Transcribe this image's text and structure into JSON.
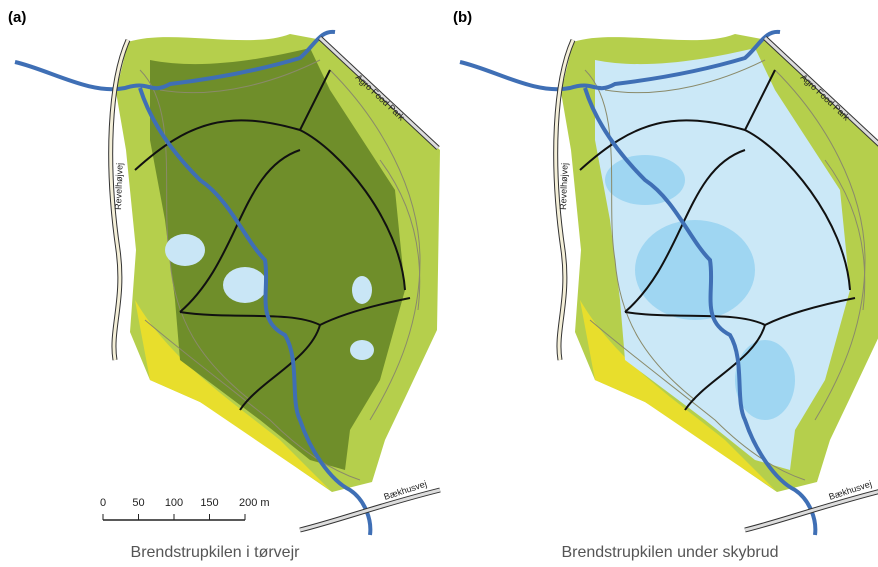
{
  "panels": [
    {
      "label": "(a)",
      "caption": "Brendstrupkilen i tørvejr",
      "roads": [
        "Revelhøjvej",
        "Agro Food Park",
        "Bækhusvej"
      ]
    },
    {
      "label": "(b)",
      "caption": "Brendstrupkilen under skybrud",
      "roads": [
        "Revelhøjvej",
        "Agro Food Park",
        "Bækhusvej"
      ]
    }
  ],
  "scale_bar": {
    "labels": [
      "0",
      "50",
      "100",
      "150",
      "200 m"
    ]
  }
}
